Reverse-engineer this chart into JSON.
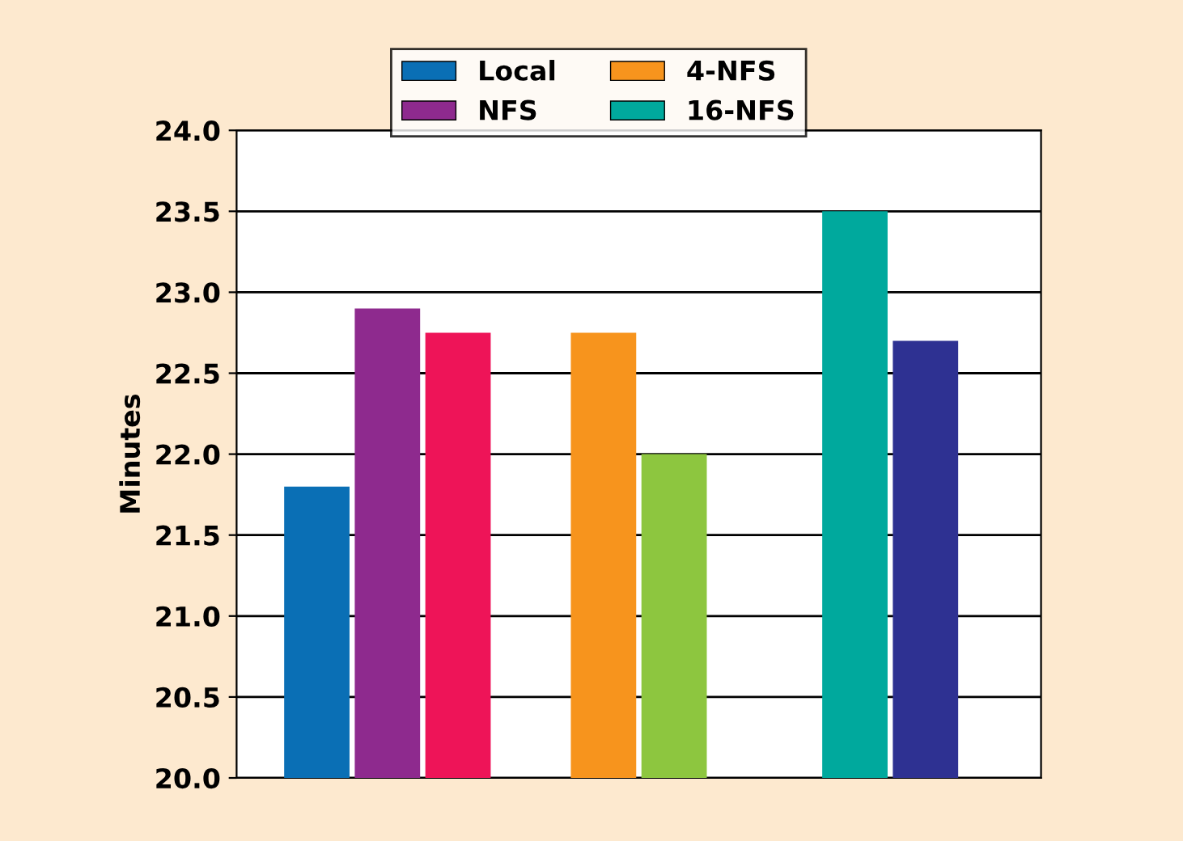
{
  "chart_data": {
    "type": "bar",
    "ylabel": "Minutes",
    "categories": [
      null,
      null,
      null
    ],
    "series": [
      {
        "name": "Local",
        "color": "#0a6fb5",
        "values": [
          21.8,
          null,
          null
        ]
      },
      {
        "name": "NFS",
        "color": "#8e2a8e",
        "values": [
          22.9,
          null,
          null
        ]
      },
      {
        "color": "#ee1458",
        "values": [
          22.75,
          null,
          null
        ]
      },
      {
        "name": "4-NFS",
        "color": "#f7941d",
        "values": [
          null,
          22.75,
          null
        ]
      },
      {
        "color": "#8dc63f",
        "values": [
          null,
          22.0,
          null
        ]
      },
      {
        "name": "16-NFS",
        "color": "#00a99d",
        "values": [
          null,
          null,
          23.5
        ]
      },
      {
        "color": "#2e3192",
        "values": [
          null,
          null,
          22.7
        ]
      }
    ],
    "ylim": [
      20,
      24
    ],
    "yticks": [
      {
        "value": 20,
        "label": "20.0"
      },
      {
        "value": 20.5,
        "label": "20.5"
      },
      {
        "value": 21,
        "label": "21.0"
      },
      {
        "value": 21.5,
        "label": "21.5"
      },
      {
        "value": 22,
        "label": "22.0"
      },
      {
        "value": 22.5,
        "label": "22.5"
      },
      {
        "value": 23,
        "label": "23.0"
      },
      {
        "value": 23.5,
        "label": "23.5"
      },
      {
        "value": 24,
        "label": "24.0"
      }
    ],
    "grid": "y",
    "legend": "top"
  }
}
